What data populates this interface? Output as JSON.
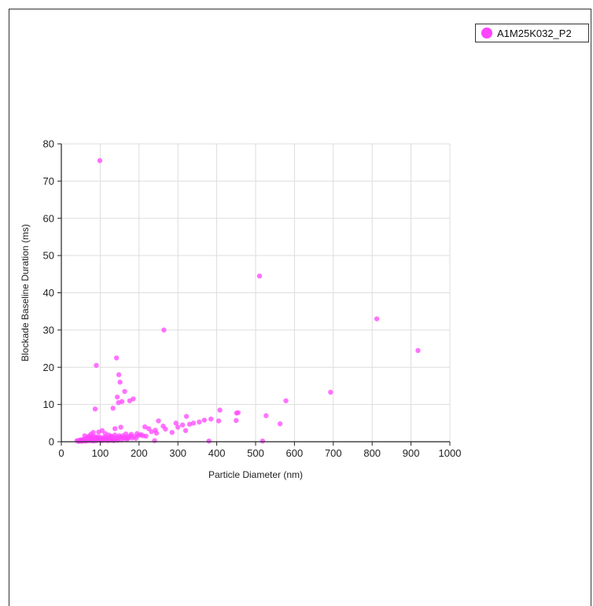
{
  "chart_data": {
    "type": "scatter",
    "title": "",
    "xlabel": "Particle Diameter (nm)",
    "ylabel": "Blockade Baseline Duration (ms)",
    "xlim": [
      0,
      1000
    ],
    "ylim": [
      0,
      80
    ],
    "xticks": [
      0,
      100,
      200,
      300,
      400,
      500,
      600,
      700,
      800,
      900,
      1000
    ],
    "yticks": [
      0,
      10,
      20,
      30,
      40,
      50,
      60,
      70,
      80
    ],
    "grid": true,
    "legend_position": "top-right",
    "marker_color": "#ff44ff",
    "series": [
      {
        "name": "A1M25K032_P2",
        "points": [
          [
            99,
            75.5
          ],
          [
            510,
            44.5
          ],
          [
            812,
            33.0
          ],
          [
            264,
            30.0
          ],
          [
            918,
            24.5
          ],
          [
            142,
            22.5
          ],
          [
            90,
            20.5
          ],
          [
            148,
            18.0
          ],
          [
            151,
            16.0
          ],
          [
            163,
            13.5
          ],
          [
            693,
            13.3
          ],
          [
            144,
            12.0
          ],
          [
            185,
            11.5
          ],
          [
            176,
            11.0
          ],
          [
            578,
            11.0
          ],
          [
            147,
            10.5
          ],
          [
            156,
            10.8
          ],
          [
            133,
            9.0
          ],
          [
            87,
            8.8
          ],
          [
            408,
            8.5
          ],
          [
            455,
            7.8
          ],
          [
            451,
            7.7
          ],
          [
            527,
            7.0
          ],
          [
            322,
            6.8
          ],
          [
            385,
            6.1
          ],
          [
            368,
            5.8
          ],
          [
            450,
            5.7
          ],
          [
            405,
            5.6
          ],
          [
            250,
            5.6
          ],
          [
            355,
            5.3
          ],
          [
            340,
            5.0
          ],
          [
            295,
            5.0
          ],
          [
            563,
            4.8
          ],
          [
            330,
            4.7
          ],
          [
            312,
            4.5
          ],
          [
            300,
            3.9
          ],
          [
            153,
            3.9
          ],
          [
            138,
            3.5
          ],
          [
            225,
            3.5
          ],
          [
            268,
            3.4
          ],
          [
            215,
            4.0
          ],
          [
            242,
            3.1
          ],
          [
            285,
            2.5
          ],
          [
            320,
            3.0
          ],
          [
            105,
            3.0
          ],
          [
            96,
            2.6
          ],
          [
            113,
            2.2
          ],
          [
            76,
            2.0
          ],
          [
            82,
            2.5
          ],
          [
            232,
            2.7
          ],
          [
            180,
            2.0
          ],
          [
            195,
            2.2
          ],
          [
            205,
            1.9
          ],
          [
            166,
            2.1
          ],
          [
            122,
            1.8
          ],
          [
            128,
            1.5
          ],
          [
            138,
            1.8
          ],
          [
            149,
            1.6
          ],
          [
            158,
            1.6
          ],
          [
            171,
            1.3
          ],
          [
            177,
            1.5
          ],
          [
            188,
            1.4
          ],
          [
            199,
            1.7
          ],
          [
            210,
            1.6
          ],
          [
            218,
            1.5
          ],
          [
            60,
            1.6
          ],
          [
            68,
            1.3
          ],
          [
            72,
            1.5
          ],
          [
            78,
            1.2
          ],
          [
            85,
            1.4
          ],
          [
            92,
            1.3
          ],
          [
            100,
            1.2
          ],
          [
            108,
            1.1
          ],
          [
            115,
            1.3
          ],
          [
            120,
            1.0
          ],
          [
            126,
            1.1
          ],
          [
            133,
            1.2
          ],
          [
            140,
            1.0
          ],
          [
            146,
            1.1
          ],
          [
            152,
            1.2
          ],
          [
            160,
            1.0
          ],
          [
            165,
            1.1
          ],
          [
            172,
            0.9
          ],
          [
            182,
            1.0
          ],
          [
            192,
            0.9
          ],
          [
            40,
            0.3
          ],
          [
            44,
            0.2
          ],
          [
            47,
            0.4
          ],
          [
            50,
            0.5
          ],
          [
            53,
            0.3
          ],
          [
            56,
            0.6
          ],
          [
            58,
            0.4
          ],
          [
            62,
            0.7
          ],
          [
            65,
            0.5
          ],
          [
            67,
            0.8
          ],
          [
            70,
            0.6
          ],
          [
            73,
            0.9
          ],
          [
            75,
            0.7
          ],
          [
            79,
            0.8
          ],
          [
            81,
            0.6
          ],
          [
            84,
            0.9
          ],
          [
            87,
            0.7
          ],
          [
            89,
            1.0
          ],
          [
            94,
            0.8
          ],
          [
            97,
            0.9
          ],
          [
            102,
            0.7
          ],
          [
            106,
            0.8
          ],
          [
            111,
            0.6
          ],
          [
            117,
            0.7
          ],
          [
            124,
            0.6
          ],
          [
            130,
            0.7
          ],
          [
            136,
            0.5
          ],
          [
            143,
            0.6
          ],
          [
            155,
            0.5
          ],
          [
            168,
            0.6
          ],
          [
            45,
            0.1
          ],
          [
            52,
            0.1
          ],
          [
            59,
            0.2
          ],
          [
            64,
            0.2
          ],
          [
            71,
            0.3
          ],
          [
            77,
            0.3
          ],
          [
            83,
            0.2
          ],
          [
            90,
            0.3
          ],
          [
            98,
            0.4
          ],
          [
            104,
            0.3
          ],
          [
            110,
            0.4
          ],
          [
            119,
            0.3
          ],
          [
            127,
            0.4
          ],
          [
            135,
            0.3
          ],
          [
            145,
            0.4
          ],
          [
            240,
            0.3
          ],
          [
            380,
            0.2
          ],
          [
            518,
            0.2
          ],
          [
            262,
            4.2
          ],
          [
            245,
            2.3
          ]
        ]
      }
    ]
  }
}
